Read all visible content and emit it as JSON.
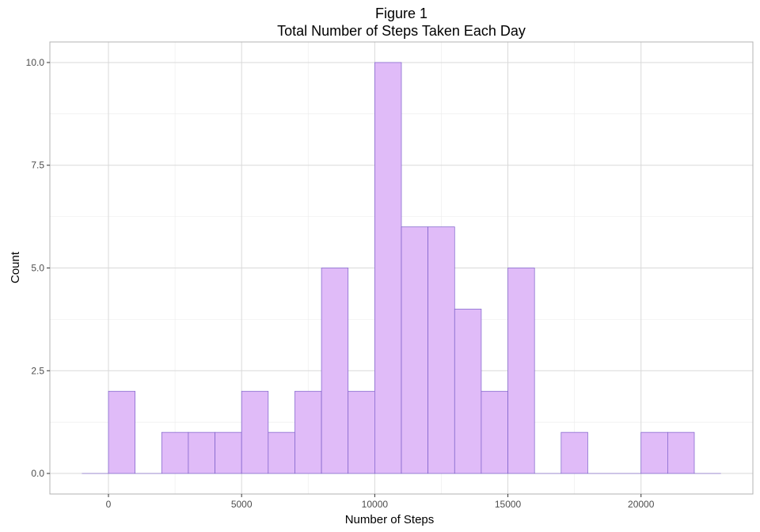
{
  "chart_data": {
    "type": "bar",
    "title": "Figure 1",
    "subtitle": "Total Number of Steps Taken Each Day",
    "xlabel": "Number of Steps",
    "ylabel": "Count",
    "xlim": [
      -2200,
      24200
    ],
    "ylim": [
      -0.5,
      10.5
    ],
    "xticks": [
      0,
      5000,
      10000,
      15000,
      20000
    ],
    "xtick_labels": [
      "0",
      "5000",
      "10000",
      "15000",
      "20000"
    ],
    "yticks": [
      0,
      2.5,
      5,
      7.5,
      10
    ],
    "ytick_labels": [
      "0.0",
      "2.5",
      "5.0",
      "7.5",
      "10.0"
    ],
    "bin_width": 1000,
    "bins": [
      {
        "start": -1000,
        "end": 0,
        "count": 0
      },
      {
        "start": 0,
        "end": 1000,
        "count": 2
      },
      {
        "start": 1000,
        "end": 2000,
        "count": 0
      },
      {
        "start": 2000,
        "end": 3000,
        "count": 1
      },
      {
        "start": 3000,
        "end": 4000,
        "count": 1
      },
      {
        "start": 4000,
        "end": 5000,
        "count": 1
      },
      {
        "start": 5000,
        "end": 6000,
        "count": 2
      },
      {
        "start": 6000,
        "end": 7000,
        "count": 1
      },
      {
        "start": 7000,
        "end": 8000,
        "count": 2
      },
      {
        "start": 8000,
        "end": 9000,
        "count": 5
      },
      {
        "start": 9000,
        "end": 10000,
        "count": 2
      },
      {
        "start": 10000,
        "end": 11000,
        "count": 10
      },
      {
        "start": 11000,
        "end": 12000,
        "count": 6
      },
      {
        "start": 12000,
        "end": 13000,
        "count": 6
      },
      {
        "start": 13000,
        "end": 14000,
        "count": 4
      },
      {
        "start": 14000,
        "end": 15000,
        "count": 2
      },
      {
        "start": 15000,
        "end": 16000,
        "count": 5
      },
      {
        "start": 16000,
        "end": 17000,
        "count": 0
      },
      {
        "start": 17000,
        "end": 18000,
        "count": 1
      },
      {
        "start": 18000,
        "end": 19000,
        "count": 0
      },
      {
        "start": 19000,
        "end": 20000,
        "count": 0
      },
      {
        "start": 20000,
        "end": 21000,
        "count": 1
      },
      {
        "start": 21000,
        "end": 22000,
        "count": 1
      },
      {
        "start": 22000,
        "end": 23000,
        "count": 0
      }
    ],
    "bar_fill": "#e0bbf8",
    "bar_stroke": "#7b5fc9",
    "grid": true,
    "grid_major_color": "#d9d9d9",
    "grid_minor_color": "#ebebeb",
    "panel_border_color": "#b3b3b3"
  }
}
